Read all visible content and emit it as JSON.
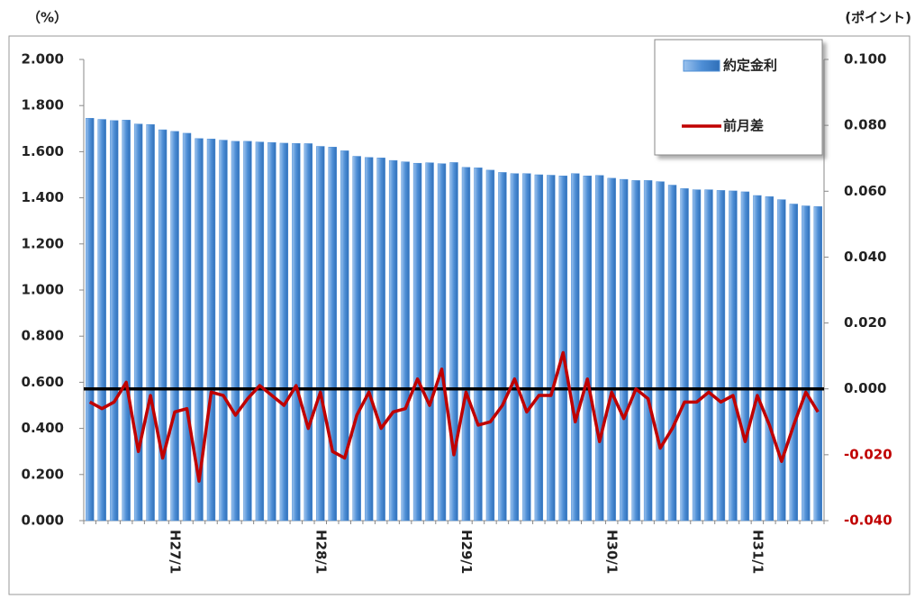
{
  "chart_data": {
    "type": "bar",
    "y_unit": "（%）",
    "y2_unit": "(ポイント)",
    "categories": [
      null,
      null,
      null,
      null,
      null,
      null,
      null,
      "H27/1",
      null,
      null,
      null,
      null,
      null,
      null,
      null,
      null,
      null,
      null,
      null,
      "H28/1",
      null,
      null,
      null,
      null,
      null,
      null,
      null,
      null,
      null,
      null,
      null,
      "H29/1",
      null,
      null,
      null,
      null,
      null,
      null,
      null,
      null,
      null,
      null,
      null,
      "H30/1",
      null,
      null,
      null,
      null,
      null,
      null,
      null,
      null,
      null,
      null,
      null,
      "H31/1",
      null,
      null,
      null,
      null,
      null
    ],
    "series": [
      {
        "name": "約定金利",
        "type": "bar",
        "color": "#4f8fd6",
        "values": [
          1.745,
          1.74,
          1.735,
          1.737,
          1.72,
          1.718,
          1.695,
          1.688,
          1.68,
          1.657,
          1.655,
          1.65,
          1.645,
          1.645,
          1.642,
          1.64,
          1.637,
          1.636,
          1.635,
          1.623,
          1.62,
          1.604,
          1.58,
          1.575,
          1.573,
          1.562,
          1.556,
          1.55,
          1.552,
          1.548,
          1.553,
          1.532,
          1.53,
          1.52,
          1.51,
          1.505,
          1.505,
          1.5,
          1.498,
          1.495,
          1.505,
          1.495,
          1.497,
          1.485,
          1.48,
          1.475,
          1.475,
          1.47,
          1.455,
          1.44,
          1.435,
          1.435,
          1.432,
          1.43,
          1.426,
          1.41,
          1.405,
          1.392,
          1.373,
          1.365,
          1.362
        ]
      },
      {
        "name": "前月差",
        "type": "line",
        "axis": "y2",
        "color": "#c00000",
        "values": [
          -0.004,
          -0.006,
          -0.004,
          0.002,
          -0.019,
          -0.002,
          -0.021,
          -0.007,
          -0.006,
          -0.028,
          -0.001,
          -0.002,
          -0.008,
          -0.003,
          0.001,
          -0.002,
          -0.005,
          0.001,
          -0.012,
          -0.001,
          -0.019,
          -0.021,
          -0.008,
          -0.001,
          -0.012,
          -0.007,
          -0.006,
          0.003,
          -0.005,
          0.006,
          -0.02,
          -0.001,
          -0.011,
          -0.01,
          -0.005,
          0.003,
          -0.007,
          -0.002,
          -0.002,
          0.011,
          -0.01,
          0.003,
          -0.016,
          -0.001,
          -0.009,
          0.0,
          -0.003,
          -0.018,
          -0.012,
          -0.004,
          -0.004,
          -0.001,
          -0.004,
          -0.002,
          -0.016,
          -0.002,
          -0.011,
          -0.022,
          -0.011,
          -0.001,
          -0.007
        ]
      }
    ],
    "ylim": [
      0,
      2
    ],
    "yticks": [
      {
        "value": 0,
        "label": "0.000"
      },
      {
        "value": 0.2,
        "label": "0.200"
      },
      {
        "value": 0.4,
        "label": "0.400"
      },
      {
        "value": 0.6,
        "label": "0.600"
      },
      {
        "value": 0.8,
        "label": "0.800"
      },
      {
        "value": 1,
        "label": "1.000"
      },
      {
        "value": 1.2,
        "label": "1.200"
      },
      {
        "value": 1.4,
        "label": "1.400"
      },
      {
        "value": 1.6,
        "label": "1.600"
      },
      {
        "value": 1.8,
        "label": "1.800"
      },
      {
        "value": 2,
        "label": "2.000"
      }
    ],
    "y2lim": [
      -0.04,
      0.1
    ],
    "y2ticks": [
      {
        "value": -0.04,
        "label": "-0.040"
      },
      {
        "value": -0.02,
        "label": "-0.020"
      },
      {
        "value": 0,
        "label": "0.000"
      },
      {
        "value": 0.02,
        "label": "0.020"
      },
      {
        "value": 0.04,
        "label": "0.040"
      },
      {
        "value": 0.06,
        "label": "0.060"
      },
      {
        "value": 0.08,
        "label": "0.080"
      },
      {
        "value": 0.1,
        "label": "0.100"
      }
    ],
    "y2_zero_line_color": "#000000",
    "negative_tick_color": "#c00000",
    "legend": "top-right"
  }
}
